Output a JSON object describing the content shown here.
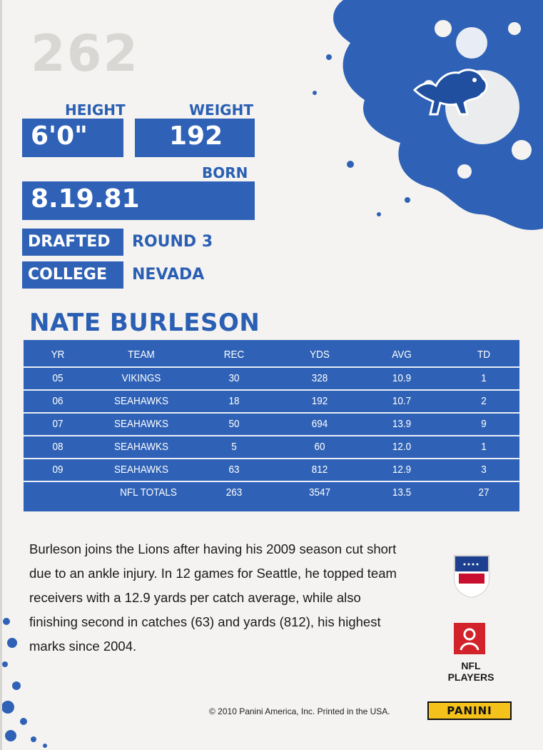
{
  "card": {
    "number": "262",
    "height_label": "HEIGHT",
    "height_value": "6'0\"",
    "weight_label": "WEIGHT",
    "weight_value": "192",
    "born_label": "BORN",
    "born_value": "8.19.81",
    "drafted_label": "DRAFTED",
    "drafted_value": "ROUND 3",
    "college_label": "COLLEGE",
    "college_value": "NEVADA",
    "player_name": "NATE BURLESON"
  },
  "stats": {
    "headers": [
      "YR",
      "TEAM",
      "REC",
      "YDS",
      "AVG",
      "TD"
    ],
    "rows": [
      [
        "05",
        "VIKINGS",
        "30",
        "328",
        "10.9",
        "1"
      ],
      [
        "06",
        "SEAHAWKS",
        "18",
        "192",
        "10.7",
        "2"
      ],
      [
        "07",
        "SEAHAWKS",
        "50",
        "694",
        "13.9",
        "9"
      ],
      [
        "08",
        "SEAHAWKS",
        "5",
        "60",
        "12.0",
        "1"
      ],
      [
        "09",
        "SEAHAWKS",
        "63",
        "812",
        "12.9",
        "3"
      ]
    ],
    "totals": [
      "",
      "NFL TOTALS",
      "263",
      "3547",
      "13.5",
      "27"
    ]
  },
  "bio": {
    "text": "Burleson joins the Lions after having his 2009 season cut short due to an ankle injury. In 12 games for Seattle, he topped team receivers with a 12.9 yards per catch average, while also finishing second in catches (63) and yards (812), his highest marks since 2004."
  },
  "footer": {
    "nfl_players": "NFL PLAYERS",
    "copyright": "© 2010 Panini America, Inc. Printed in the USA.",
    "panini": "PANINI"
  },
  "colors": {
    "primary_blue": "#2f62b6",
    "accent_yellow": "#f4c21b"
  },
  "icons": [
    "lions-logo-icon",
    "nfl-shield-icon",
    "nfl-players-logo-icon",
    "panini-logo-icon"
  ]
}
